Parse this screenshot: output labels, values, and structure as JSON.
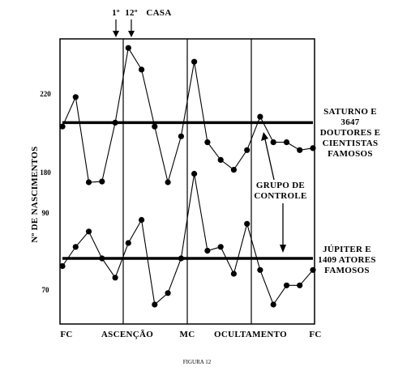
{
  "chart_data": {
    "type": "line",
    "title": "",
    "ylabel": "Nº DE NASCIMENTOS",
    "caption": "FIGURA 12",
    "x_tick_labels": [
      "FC",
      "ASCENÇÃO",
      "MC",
      "OCULTAMENTO",
      "FC"
    ],
    "top_annotation": {
      "sector1": "1º",
      "sector12": "12º",
      "casa": "CASA"
    },
    "control_label": [
      "GRUPO DE",
      "CONTROLE"
    ],
    "grid": "vertical lines at FC, ASCENÇÃO, MC, OCULTAMENTO, FC",
    "panels": [
      {
        "yticks": [
          180,
          220
        ],
        "ylim": [
          170,
          248
        ],
        "legend": [
          "SATURNO E",
          "3647",
          "DOUTORES E",
          "CIENTISTAS",
          "FAMOSOS"
        ],
        "series": [
          {
            "values": [
              203,
              218,
              167,
              175,
              205,
              243,
              232,
              203,
              171,
              198,
              236,
              195,
              186,
              181,
              191,
              208,
              195,
              195,
              191,
              192
            ]
          },
          {
            "kind": "control",
            "values": [
              205,
              205,
              205,
              205,
              205,
              205,
              205,
              205,
              205,
              205,
              205,
              205,
              205,
              205,
              205,
              205,
              205,
              205,
              205,
              205
            ]
          }
        ]
      },
      {
        "yticks": [
          70,
          90
        ],
        "ylim": [
          63,
          95
        ],
        "legend": [
          "JÚPITER E",
          "1409 ATORES",
          "FAMOSOS"
        ],
        "series": [
          {
            "values": [
              76,
              81,
              85,
              78,
              73,
              82,
              88,
              66,
              69,
              78,
              100,
              80,
              81,
              74,
              87,
              75,
              66,
              71,
              71,
              75
            ]
          },
          {
            "kind": "control",
            "values": [
              78,
              78,
              78,
              78,
              78,
              78,
              78,
              78,
              78,
              78,
              78,
              78,
              78,
              78,
              78,
              78,
              78,
              78,
              78,
              78
            ]
          }
        ]
      }
    ]
  }
}
